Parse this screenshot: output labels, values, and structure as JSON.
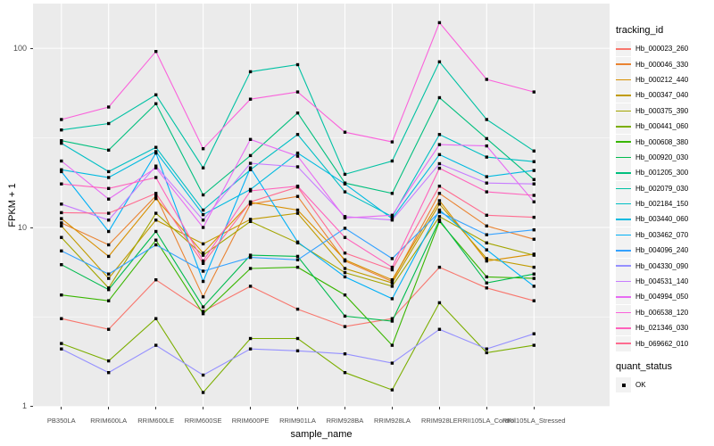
{
  "chart_data": {
    "type": "line",
    "title": "",
    "xlabel": "sample_name",
    "ylabel": "FPKM + 1",
    "y_scale": "log10",
    "y_ticks": [
      "1",
      "10",
      "100"
    ],
    "ylim": [
      1,
      175
    ],
    "grid": "on",
    "point_marker": "black-square",
    "marker_color": "#000000",
    "categories": [
      "PB350LA",
      "RRIM600LA",
      "RRIM600LE",
      "RRIM600SE",
      "RRIM600PE",
      "RRIM901LA",
      "RRIM928BA",
      "RRIM928LA",
      "RRIM928LE",
      "RRII105LA_Control",
      "RRII105LA_Stressed"
    ],
    "legend": {
      "position": "right",
      "tracking_title": "tracking_id",
      "quant_title": "quant_status",
      "quant_items": [
        {
          "label": "OK"
        }
      ]
    },
    "series": [
      {
        "name": "Hb_000023_260",
        "color": "#F8766D",
        "values": [
          3.1,
          2.7,
          5.1,
          3.4,
          4.7,
          3.5,
          2.8,
          3.1,
          6.0,
          4.6,
          3.9
        ]
      },
      {
        "name": "Hb_000046_330",
        "color": "#EA8331",
        "values": [
          10.6,
          8.0,
          15.0,
          4.1,
          13.5,
          14.9,
          6.5,
          5.0,
          15.5,
          10.2,
          8.6
        ]
      },
      {
        "name": "Hb_000212_440",
        "color": "#D89000",
        "values": [
          11.2,
          6.9,
          14.5,
          7.2,
          13.8,
          12.5,
          6.6,
          5.1,
          14.1,
          6.5,
          7.1
        ]
      },
      {
        "name": "Hb_000347_040",
        "color": "#C09B00",
        "values": [
          10.2,
          5.2,
          11.0,
          8.1,
          11.1,
          12.0,
          5.9,
          4.9,
          13.5,
          6.7,
          6.0
        ]
      },
      {
        "name": "Hb_000375_390",
        "color": "#A3A500",
        "values": [
          8.8,
          4.6,
          12.0,
          7.0,
          10.8,
          8.2,
          5.6,
          4.7,
          11.5,
          8.2,
          7.0
        ]
      },
      {
        "name": "Hb_000441_060",
        "color": "#7CAE00",
        "values": [
          2.25,
          1.8,
          3.1,
          1.2,
          2.4,
          2.4,
          1.55,
          1.24,
          3.8,
          2.0,
          2.2
        ]
      },
      {
        "name": "Hb_000608_380",
        "color": "#39B600",
        "values": [
          4.2,
          3.9,
          8.5,
          3.3,
          5.9,
          6.0,
          4.2,
          2.2,
          10.8,
          5.3,
          5.2
        ]
      },
      {
        "name": "Hb_000920_030",
        "color": "#00BB4E",
        "values": [
          6.2,
          4.5,
          9.5,
          3.6,
          7.0,
          6.9,
          3.2,
          3.0,
          11.0,
          4.9,
          5.5
        ]
      },
      {
        "name": "Hb_001205_300",
        "color": "#00BF7D",
        "values": [
          30.5,
          27.0,
          49.0,
          15.2,
          25.2,
          43.5,
          17.7,
          15.5,
          53.0,
          31.3,
          18.5
        ]
      },
      {
        "name": "Hb_002079_030",
        "color": "#00C1A3",
        "values": [
          35.0,
          38.0,
          55.0,
          21.5,
          74.0,
          81.0,
          19.8,
          23.5,
          84.0,
          40.0,
          26.7
        ]
      },
      {
        "name": "Hb_002184_150",
        "color": "#00BFC4",
        "values": [
          29.5,
          20.5,
          28.0,
          12.5,
          21.0,
          33.0,
          15.8,
          11.5,
          33.0,
          24.7,
          23.3
        ]
      },
      {
        "name": "Hb_003440_060",
        "color": "#00BAE0",
        "values": [
          21.0,
          19.0,
          26.5,
          11.8,
          16.3,
          26.0,
          17.5,
          11.2,
          25.5,
          19.2,
          20.8
        ]
      },
      {
        "name": "Hb_003462_070",
        "color": "#00B0F6",
        "values": [
          20.5,
          9.5,
          26.0,
          5.0,
          21.5,
          8.3,
          5.3,
          4.0,
          12.5,
          7.5,
          4.7
        ]
      },
      {
        "name": "Hb_004096_240",
        "color": "#35A2FF",
        "values": [
          7.4,
          5.5,
          8.0,
          5.7,
          6.8,
          6.6,
          9.9,
          6.7,
          12.2,
          9.1,
          9.7
        ]
      },
      {
        "name": "Hb_004330_090",
        "color": "#9590FF",
        "values": [
          2.1,
          1.55,
          2.2,
          1.5,
          2.1,
          2.05,
          1.97,
          1.75,
          2.7,
          2.1,
          2.55
        ]
      },
      {
        "name": "Hb_004531_140",
        "color": "#C77CFF",
        "values": [
          13.5,
          11.0,
          22.0,
          11.0,
          22.8,
          21.8,
          11.5,
          11.0,
          22.7,
          17.7,
          17.5
        ]
      },
      {
        "name": "Hb_004994_050",
        "color": "#E76BF3",
        "values": [
          23.5,
          14.4,
          21.5,
          10.0,
          31.0,
          25.0,
          11.3,
          11.7,
          29.0,
          28.5,
          13.9
        ]
      },
      {
        "name": "Hb_006538_120",
        "color": "#FA62DB",
        "values": [
          40.0,
          47.0,
          96.0,
          27.5,
          52.0,
          57.0,
          34.0,
          30.0,
          139.0,
          67.0,
          57.0
        ]
      },
      {
        "name": "Hb_021346_030",
        "color": "#FF62BC",
        "values": [
          17.5,
          16.5,
          19.0,
          6.5,
          16.0,
          17.0,
          8.8,
          6.0,
          21.4,
          15.8,
          15.1
        ]
      },
      {
        "name": "Hb_069662_010",
        "color": "#FF6C90",
        "values": [
          12.1,
          12.0,
          15.5,
          6.3,
          13.9,
          16.8,
          7.2,
          5.8,
          17.0,
          11.7,
          11.4
        ]
      }
    ]
  }
}
